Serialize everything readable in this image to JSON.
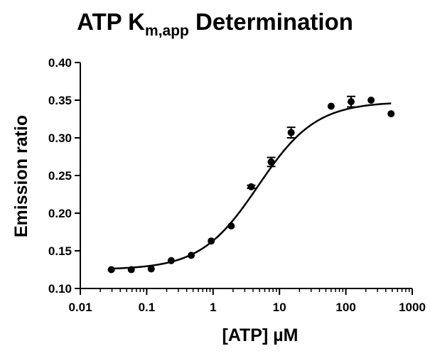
{
  "chart_data": {
    "type": "scatter",
    "title": "ATP K",
    "title_subscript": "m,app",
    "title_suffix": " Determination",
    "xlabel": "[ATP] µM",
    "ylabel": "Emission ratio",
    "xscale": "log",
    "xlim": [
      0.01,
      1000
    ],
    "ylim": [
      0.1,
      0.4
    ],
    "x_ticks": [
      0.01,
      0.1,
      1,
      10,
      100,
      1000
    ],
    "x_tick_labels": [
      "0.01",
      "0.1",
      "1",
      "10",
      "100",
      "1000"
    ],
    "y_ticks": [
      0.1,
      0.15,
      0.2,
      0.25,
      0.3,
      0.35,
      0.4
    ],
    "y_tick_labels": [
      "0.10",
      "0.15",
      "0.20",
      "0.25",
      "0.30",
      "0.35",
      "0.40"
    ],
    "grid": false,
    "series": [
      {
        "x": [
          0.0293,
          0.0586,
          0.117,
          0.234,
          0.469,
          0.938,
          1.875,
          3.75,
          7.5,
          15,
          60,
          120,
          240,
          480
        ],
        "y": [
          0.125,
          0.125,
          0.126,
          0.137,
          0.144,
          0.163,
          0.183,
          0.235,
          0.268,
          0.307,
          0.342,
          0.348,
          0.35,
          0.332
        ],
        "error": [
          0.001,
          0.001,
          0.001,
          0.001,
          0.001,
          0.001,
          0.001,
          0.002,
          0.006,
          0.007,
          0.001,
          0.007,
          0.001,
          0.001
        ]
      }
    ],
    "fit": {
      "bottom": 0.125,
      "top": 0.348,
      "ec50": 4.8,
      "hill": 1.0
    },
    "colors": {
      "marker": "#000000",
      "line": "#000000"
    }
  }
}
